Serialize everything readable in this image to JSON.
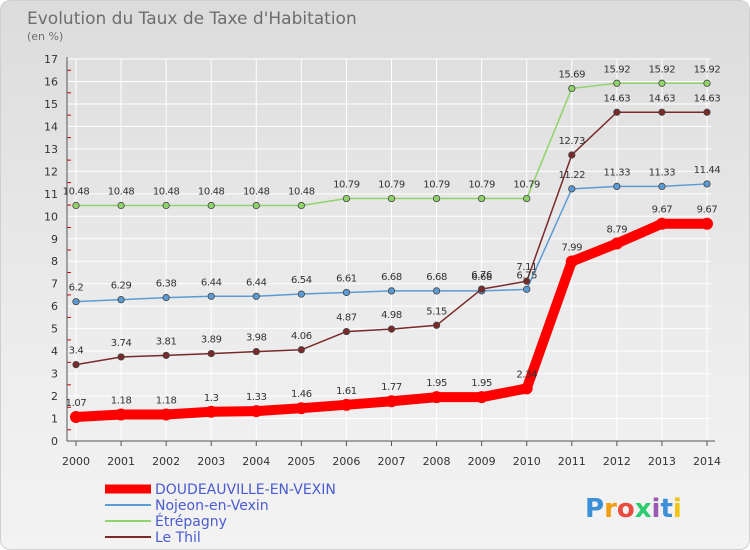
{
  "chart_data": {
    "type": "line",
    "title": "Evolution du Taux de Taxe d'Habitation",
    "subtitle": "(en %)",
    "x": [
      "2000",
      "2001",
      "2002",
      "2003",
      "2004",
      "2005",
      "2006",
      "2007",
      "2008",
      "2009",
      "2010",
      "2011",
      "2012",
      "2013",
      "2014"
    ],
    "ylim": [
      0,
      17
    ],
    "yticks": [
      "0",
      "1",
      "2",
      "3",
      "4",
      "5",
      "6",
      "7",
      "8",
      "9",
      "10",
      "11",
      "12",
      "13",
      "14",
      "15",
      "16",
      "17"
    ],
    "grid": true,
    "legend": "bottom-left",
    "series": [
      {
        "name": "DOUDEAUVILLE-EN-VEXIN",
        "color": "#ff0000",
        "values": [
          1.07,
          1.18,
          1.18,
          1.3,
          1.33,
          1.46,
          1.61,
          1.77,
          1.95,
          1.95,
          2.34,
          7.99,
          8.79,
          9.67,
          9.67
        ],
        "labels": [
          "1.07",
          "1.18",
          "1.18",
          "1.3",
          "1.33",
          "1.46",
          "1.61",
          "1.77",
          "1.95",
          "1.95",
          "2.34",
          "7.99",
          "8.79",
          "9.67",
          "9.67"
        ]
      },
      {
        "name": "Nojeon-en-Vexin",
        "color": "#5b9bd5",
        "values": [
          6.2,
          6.29,
          6.38,
          6.44,
          6.44,
          6.54,
          6.61,
          6.68,
          6.68,
          6.68,
          6.75,
          11.22,
          11.33,
          11.33,
          11.44
        ],
        "labels": [
          "6.2",
          "6.29",
          "6.38",
          "6.44",
          "6.44",
          "6.54",
          "6.61",
          "6.68",
          "6.68",
          "6.68",
          "6.75",
          "11.22",
          "11.33",
          "11.33",
          "11.44"
        ]
      },
      {
        "name": "Étrépagny",
        "color": "#90d36a",
        "values": [
          10.48,
          10.48,
          10.48,
          10.48,
          10.48,
          10.48,
          10.79,
          10.79,
          10.79,
          10.79,
          10.79,
          15.69,
          15.92,
          15.92,
          15.92
        ],
        "labels": [
          "10.48",
          "10.48",
          "10.48",
          "10.48",
          "10.48",
          "10.48",
          "10.79",
          "10.79",
          "10.79",
          "10.79",
          "10.79",
          "15.69",
          "15.92",
          "15.92",
          "15.92"
        ]
      },
      {
        "name": "Le Thil",
        "color": "#7a2a2a",
        "values": [
          3.4,
          3.74,
          3.81,
          3.89,
          3.98,
          4.06,
          4.87,
          4.98,
          5.15,
          6.76,
          7.11,
          12.73,
          14.63,
          14.63,
          14.63
        ],
        "labels": [
          "3.4",
          "3.74",
          "3.81",
          "3.89",
          "3.98",
          "4.06",
          "4.87",
          "4.98",
          "5.15",
          "6.76",
          "7.11",
          "12.73",
          "14.63",
          "14.63",
          "14.63"
        ]
      }
    ]
  },
  "logo": {
    "text": "Proxiti",
    "colors": [
      "#3d8fd8",
      "#f39c12",
      "#e74c3c",
      "#2ecc71",
      "#9b59b6",
      "#3d8fd8",
      "#f1c40f"
    ]
  }
}
